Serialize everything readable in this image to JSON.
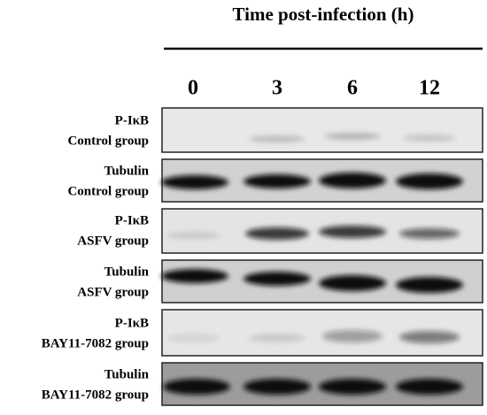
{
  "header": {
    "title": "Time post-infection (h)",
    "timepoints": [
      "0",
      "3",
      "6",
      "12"
    ]
  },
  "panels": [
    {
      "lines": [
        "P-IκB",
        "Control group"
      ]
    },
    {
      "lines": [
        "Tubulin",
        "Control group"
      ]
    },
    {
      "lines": [
        "P-IκB",
        "ASFV group"
      ]
    },
    {
      "lines": [
        "Tubulin",
        "ASFV group"
      ]
    },
    {
      "lines": [
        "P-IκB",
        "BAY11-7082 group"
      ]
    },
    {
      "lines": [
        "Tubulin",
        "BAY11-7082 group"
      ]
    }
  ]
}
